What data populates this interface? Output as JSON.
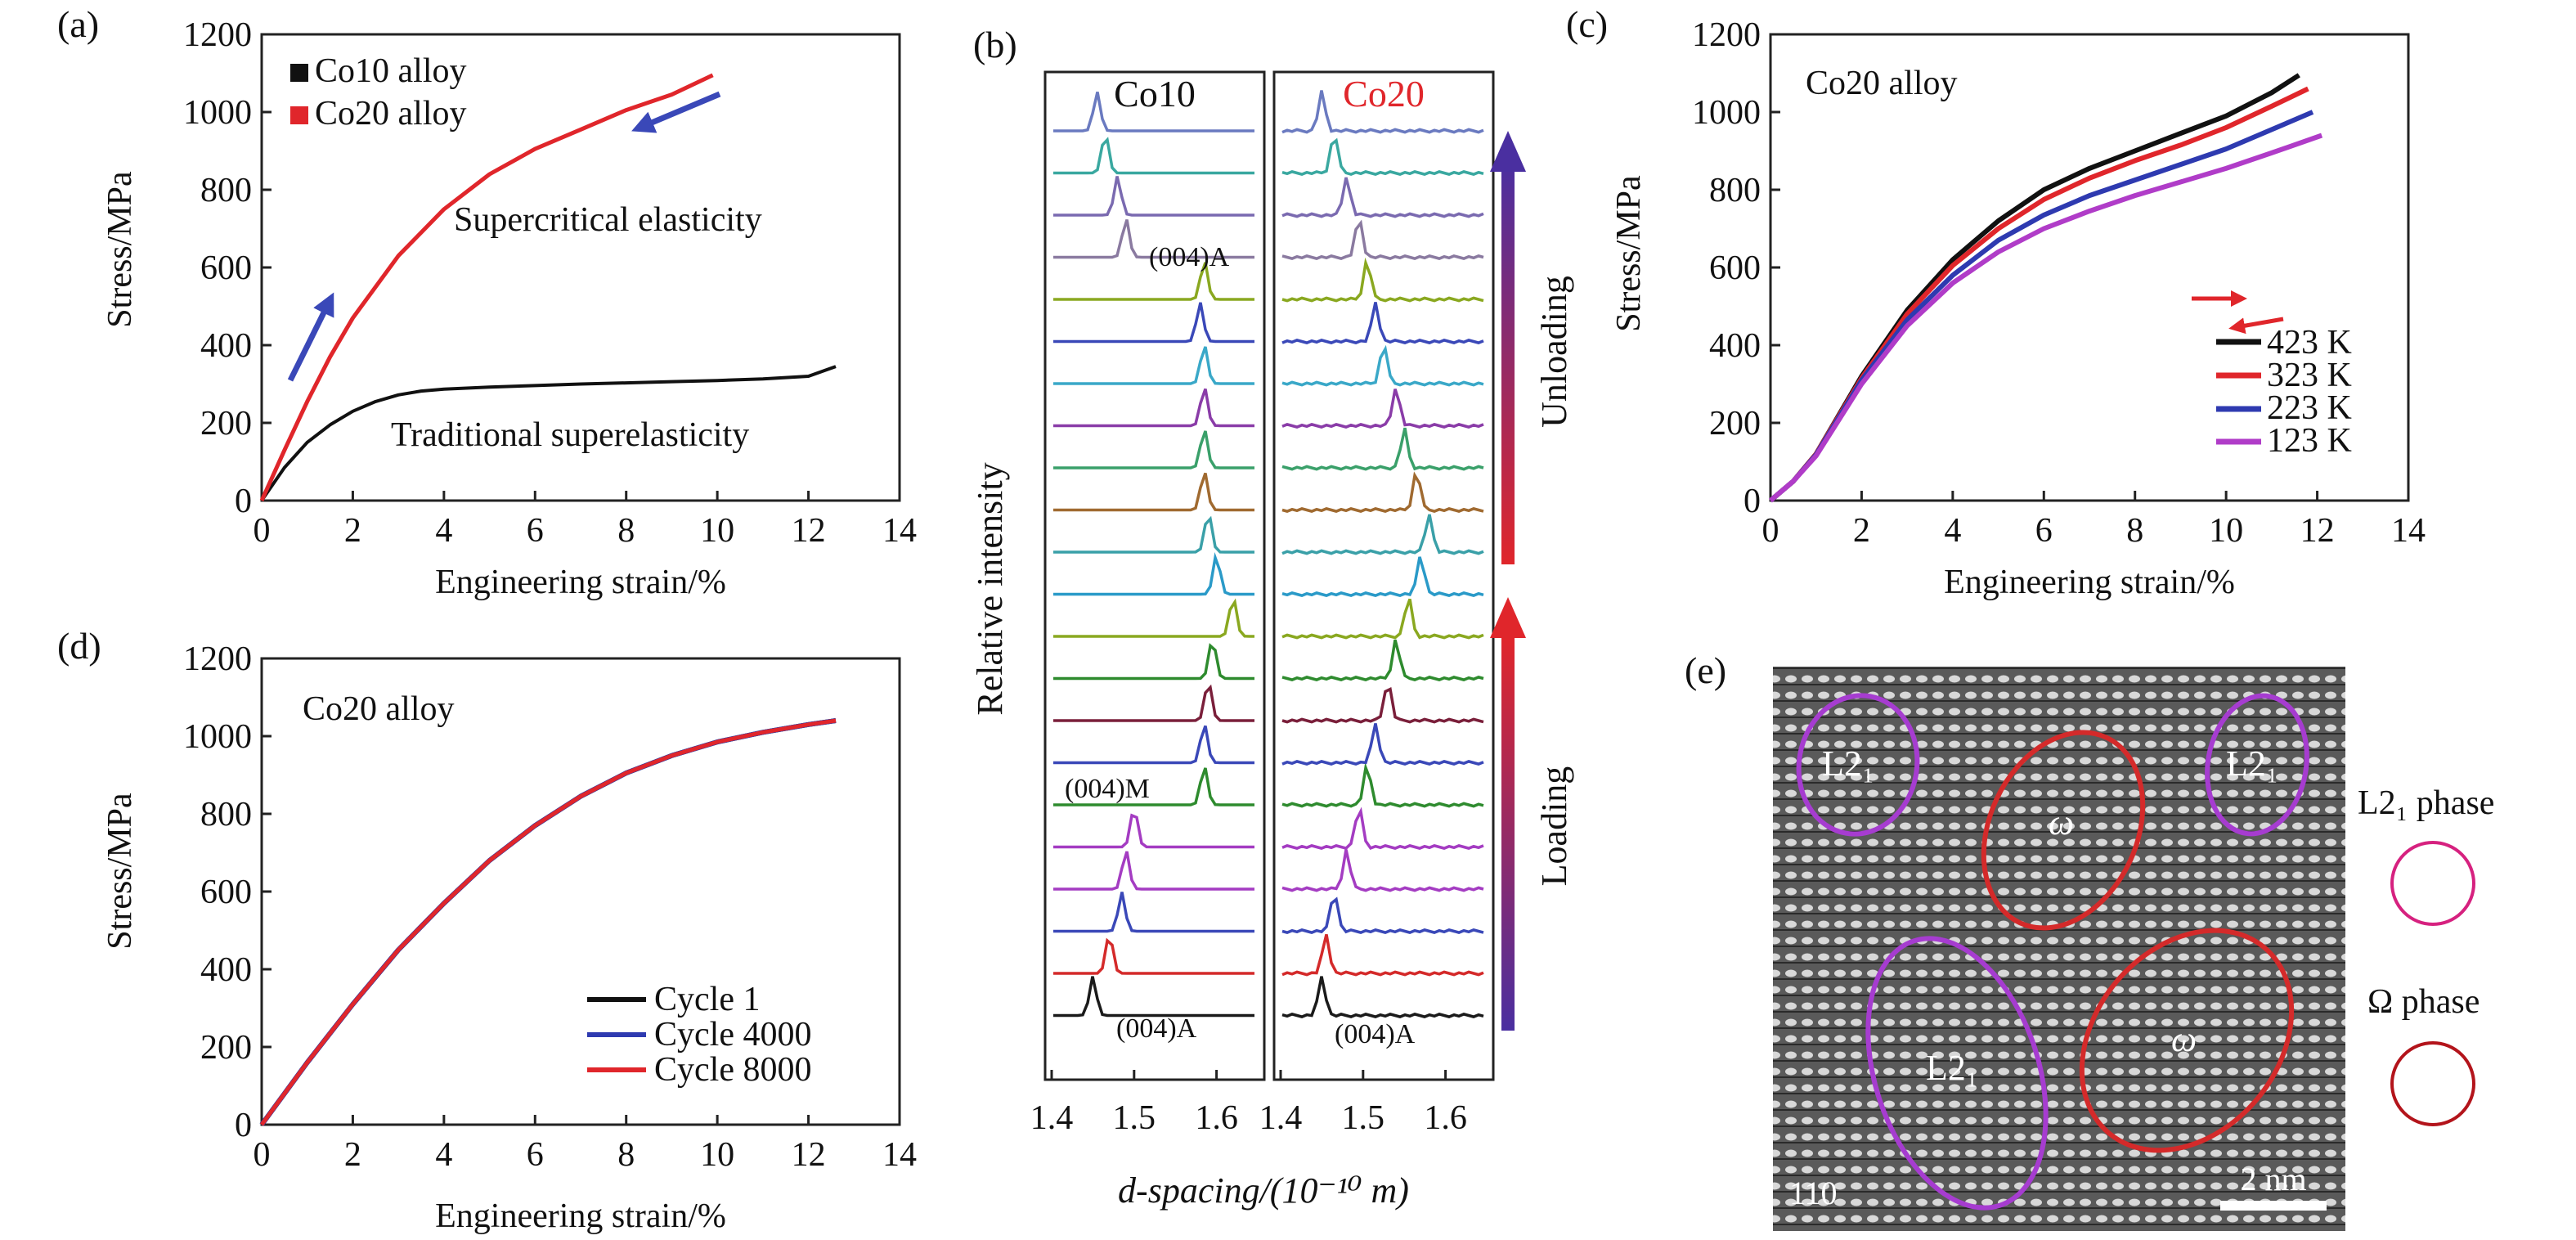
{
  "panels": {
    "a": {
      "label": "(a)"
    },
    "b": {
      "label": "(b)"
    },
    "c": {
      "label": "(c)"
    },
    "d": {
      "label": "(d)"
    },
    "e": {
      "label": "(e)"
    }
  },
  "colors": {
    "black": "#111111",
    "red": "#e0262b",
    "blue": "#2e3ab0",
    "magenta": "#b03cc8",
    "arrow_blue": "#3a48b8",
    "ring_magenta": "#d6217f",
    "ring_red": "#b3141b"
  },
  "chart_data": [
    {
      "id": "a",
      "type": "line",
      "xlabel": "Engineering strain/%",
      "ylabel": "Stress/MPa",
      "xlim": [
        0,
        14
      ],
      "ylim": [
        0,
        1200
      ],
      "xticks": [
        "0",
        "2",
        "4",
        "6",
        "8",
        "10",
        "12",
        "14"
      ],
      "yticks": [
        "0",
        "200",
        "400",
        "600",
        "800",
        "1000",
        "1200"
      ],
      "legend": [
        "Co10 alloy",
        "Co20 alloy"
      ],
      "legend_position": "top-left",
      "annotations": [
        "Supercritical elasticity",
        "Traditional superelasticity"
      ],
      "series": [
        {
          "name": "Co10 alloy",
          "color": "#111111",
          "x": [
            0,
            0.5,
            1,
            1.5,
            2,
            2.5,
            3,
            3.5,
            4,
            5,
            6,
            7,
            8,
            9,
            10,
            11,
            12,
            12.6
          ],
          "y": [
            0,
            85,
            150,
            195,
            230,
            255,
            272,
            282,
            287,
            292,
            296,
            300,
            303,
            306,
            309,
            313,
            320,
            345
          ]
        },
        {
          "name": "Co20 alloy",
          "color": "#e0262b",
          "x": [
            0,
            0.5,
            1,
            1.5,
            2,
            3,
            4,
            5,
            6,
            7,
            8,
            9,
            9.9
          ],
          "y": [
            0,
            130,
            255,
            370,
            470,
            630,
            750,
            840,
            905,
            955,
            1005,
            1045,
            1095
          ]
        }
      ]
    },
    {
      "id": "b",
      "type": "line",
      "xlabel": "d-spacing/(10⁻¹⁰ m)",
      "ylabel": "Relative intensity",
      "xlim": [
        1.4,
        1.65
      ],
      "xticks": [
        "1.4",
        "1.5",
        "1.6"
      ],
      "columns": [
        {
          "title": "Co10",
          "title_color": "#111111",
          "peak_positions": [
            1.45,
            1.47,
            1.485,
            1.49,
            1.5,
            1.585,
            1.585,
            1.59,
            1.595,
            1.62,
            1.6,
            1.59,
            1.585,
            1.585,
            1.585,
            1.585,
            1.58,
            1.585,
            1.49,
            1.48,
            1.465,
            1.455
          ],
          "labels": [
            "(004)A",
            "(004)M",
            "(004)A"
          ]
        },
        {
          "title": "Co20",
          "title_color": "#e0262b",
          "peak_positions": [
            1.45,
            1.455,
            1.465,
            1.48,
            1.495,
            1.505,
            1.515,
            1.53,
            1.54,
            1.555,
            1.57,
            1.58,
            1.565,
            1.55,
            1.54,
            1.525,
            1.515,
            1.505,
            1.495,
            1.48,
            1.465,
            1.45
          ],
          "labels": [
            "(004)A"
          ]
        }
      ],
      "arrows": [
        "Loading",
        "Unloading"
      ]
    },
    {
      "id": "c",
      "type": "line",
      "title": "Co20 alloy",
      "xlabel": "Engineering strain/%",
      "ylabel": "Stress/MPa",
      "xlim": [
        0,
        14
      ],
      "ylim": [
        0,
        1200
      ],
      "xticks": [
        "0",
        "2",
        "4",
        "6",
        "8",
        "10",
        "12",
        "14"
      ],
      "yticks": [
        "0",
        "200",
        "400",
        "600",
        "800",
        "1000",
        "1200"
      ],
      "legend_position": "lower-right",
      "series": [
        {
          "name": "423 K",
          "color": "#111111",
          "x": [
            0,
            0.5,
            1,
            2,
            3,
            4,
            5,
            6,
            7,
            8,
            9,
            10,
            11,
            11.6
          ],
          "y": [
            0,
            50,
            120,
            320,
            490,
            620,
            720,
            800,
            855,
            900,
            945,
            990,
            1050,
            1095
          ]
        },
        {
          "name": "323 K",
          "color": "#e0262b",
          "x": [
            0,
            0.5,
            1,
            2,
            3,
            4,
            5,
            6,
            7,
            8,
            9,
            10,
            11,
            11.8
          ],
          "y": [
            0,
            50,
            120,
            315,
            480,
            605,
            700,
            775,
            830,
            875,
            915,
            960,
            1015,
            1060
          ]
        },
        {
          "name": "223 K",
          "color": "#2e3ab0",
          "x": [
            0,
            0.5,
            1,
            2,
            3,
            4,
            5,
            6,
            7,
            8,
            9,
            10,
            11,
            11.9
          ],
          "y": [
            0,
            50,
            118,
            310,
            465,
            580,
            670,
            735,
            785,
            825,
            865,
            905,
            955,
            1000
          ]
        },
        {
          "name": "123 K",
          "color": "#b03cc8",
          "x": [
            0,
            0.5,
            1,
            2,
            3,
            4,
            5,
            6,
            7,
            8,
            9,
            10,
            11,
            12.1
          ],
          "y": [
            0,
            50,
            115,
            300,
            450,
            560,
            640,
            700,
            745,
            785,
            820,
            855,
            895,
            940
          ]
        }
      ]
    },
    {
      "id": "d",
      "type": "line",
      "title": "Co20 alloy",
      "xlabel": "Engineering strain/%",
      "ylabel": "Stress/MPa",
      "xlim": [
        0,
        14
      ],
      "ylim": [
        0,
        1200
      ],
      "xticks": [
        "0",
        "2",
        "4",
        "6",
        "8",
        "10",
        "12",
        "14"
      ],
      "yticks": [
        "0",
        "200",
        "400",
        "600",
        "800",
        "1000",
        "1200"
      ],
      "legend_position": "lower-right",
      "series": [
        {
          "name": "Cycle 1",
          "color": "#111111",
          "x": [
            0,
            1,
            2,
            3,
            4,
            5,
            6,
            7,
            8,
            9,
            10,
            11,
            12,
            12.6
          ],
          "y": [
            0,
            160,
            310,
            450,
            570,
            680,
            770,
            845,
            905,
            950,
            985,
            1010,
            1030,
            1040
          ]
        },
        {
          "name": "Cycle 4000",
          "color": "#2e3ab0",
          "x": [
            0,
            1,
            2,
            3,
            4,
            5,
            6,
            7,
            8,
            9,
            10,
            11,
            12,
            12.6
          ],
          "y": [
            0,
            160,
            310,
            450,
            570,
            680,
            770,
            845,
            905,
            950,
            985,
            1010,
            1030,
            1040
          ]
        },
        {
          "name": "Cycle 8000",
          "color": "#e0262b",
          "x": [
            0,
            1,
            2,
            3,
            4,
            5,
            6,
            7,
            8,
            9,
            10,
            11,
            12,
            12.6
          ],
          "y": [
            0,
            160,
            310,
            450,
            570,
            680,
            770,
            845,
            905,
            950,
            985,
            1010,
            1030,
            1040
          ]
        }
      ]
    }
  ],
  "panel_e": {
    "zone_axis": "110",
    "scale_bar": "2 nm",
    "ellipse_labels": [
      "L2₁",
      "ω",
      "L2₁",
      "L2₁",
      "ω"
    ],
    "legend": [
      {
        "label": "L2₁ phase"
      },
      {
        "label": "Ω phase"
      }
    ]
  }
}
